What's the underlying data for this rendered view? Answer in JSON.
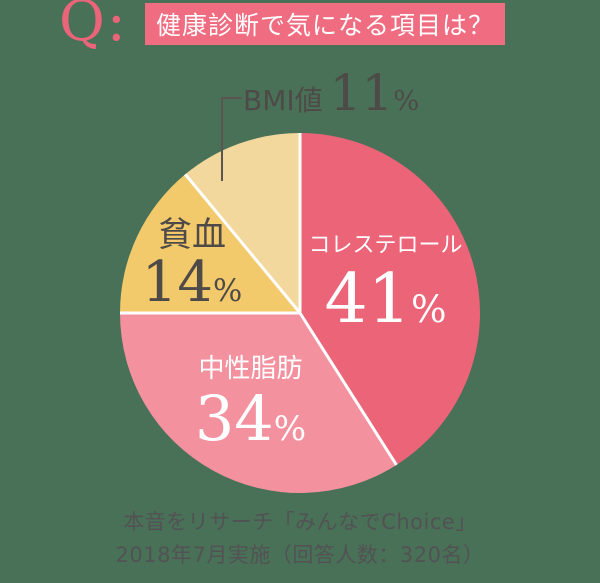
{
  "header": {
    "q_label": "Q:",
    "title": "健康診断で気になる項目は？"
  },
  "chart_data": {
    "type": "pie",
    "title": "健康診断で気になる項目は？",
    "unit": "%",
    "start_angle_deg": 0,
    "direction": "clockwise",
    "labels_on_slices": true,
    "legend_position": "none",
    "segments": [
      {
        "label": "コレステロール",
        "value": 41,
        "color": "#eb6478",
        "text_color": "#ffffff"
      },
      {
        "label": "中性脂肪",
        "value": 34,
        "color": "#f4919f",
        "text_color": "#ffffff"
      },
      {
        "label": "貧血",
        "value": 14,
        "color": "#f2c96b",
        "text_color": "#4e4a48"
      },
      {
        "label": "BMI値",
        "value": 11,
        "color": "#f3d89e",
        "text_color": "#4e4a48"
      }
    ]
  },
  "footer": {
    "line1": "本音をリサーチ「みんなでChoice」",
    "line2": "2018年7月実施（回答人数：320名）"
  },
  "colors": {
    "background": "#497157",
    "accent_pink": "#f06c80",
    "q_pink": "#ea6579",
    "divider": "#ffffff",
    "leader_line": "#5a5550",
    "footer_text": "#525254"
  }
}
